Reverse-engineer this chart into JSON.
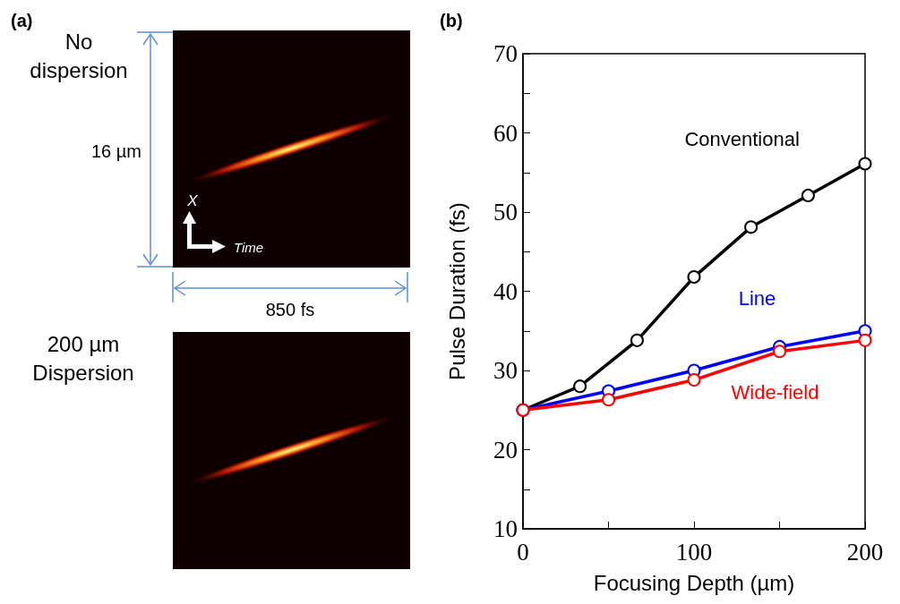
{
  "chart_data": [
    {
      "type": "other",
      "title": "(a)",
      "annotations": [
        "No dispersion",
        "16 µm",
        "X",
        "Time",
        "850 fs",
        "200 µm Dispersion"
      ]
    },
    {
      "type": "line",
      "title": "(b)",
      "xlabel": "Focusing Depth (µm)",
      "ylabel": "Pulse Duration (fs)",
      "xlim": [
        0,
        200
      ],
      "ylim": [
        10,
        70
      ],
      "xticks": [
        0,
        {
          "value": 50,
          "label": null
        },
        100,
        {
          "value": 150,
          "label": null
        },
        200
      ],
      "yticks": [
        10,
        {
          "value": 15,
          "label": null
        },
        20,
        {
          "value": 25,
          "label": null
        },
        30,
        {
          "value": 35,
          "label": null
        },
        40,
        {
          "value": 45,
          "label": null
        },
        50,
        {
          "value": 55,
          "label": null
        },
        60,
        {
          "value": 65,
          "label": null
        },
        70
      ],
      "marker": "circle",
      "grid": false,
      "series": [
        {
          "name": "Conventional",
          "color": "#000000",
          "x": [
            0,
            33.3,
            66.7,
            100,
            133.3,
            166.7,
            200
          ],
          "values": [
            25,
            28,
            33.8,
            41.8,
            48.1,
            52.1,
            56.1
          ]
        },
        {
          "name": "Line",
          "color": "#0000ff",
          "x": [
            0,
            50,
            100,
            150,
            200
          ],
          "values": [
            25,
            27.4,
            30,
            33,
            35
          ]
        },
        {
          "name": "Wide-field",
          "color": "#ff0000",
          "x": [
            0,
            50,
            100,
            150,
            200
          ],
          "values": [
            25,
            26.3,
            28.8,
            32.4,
            33.8
          ]
        }
      ]
    }
  ]
}
